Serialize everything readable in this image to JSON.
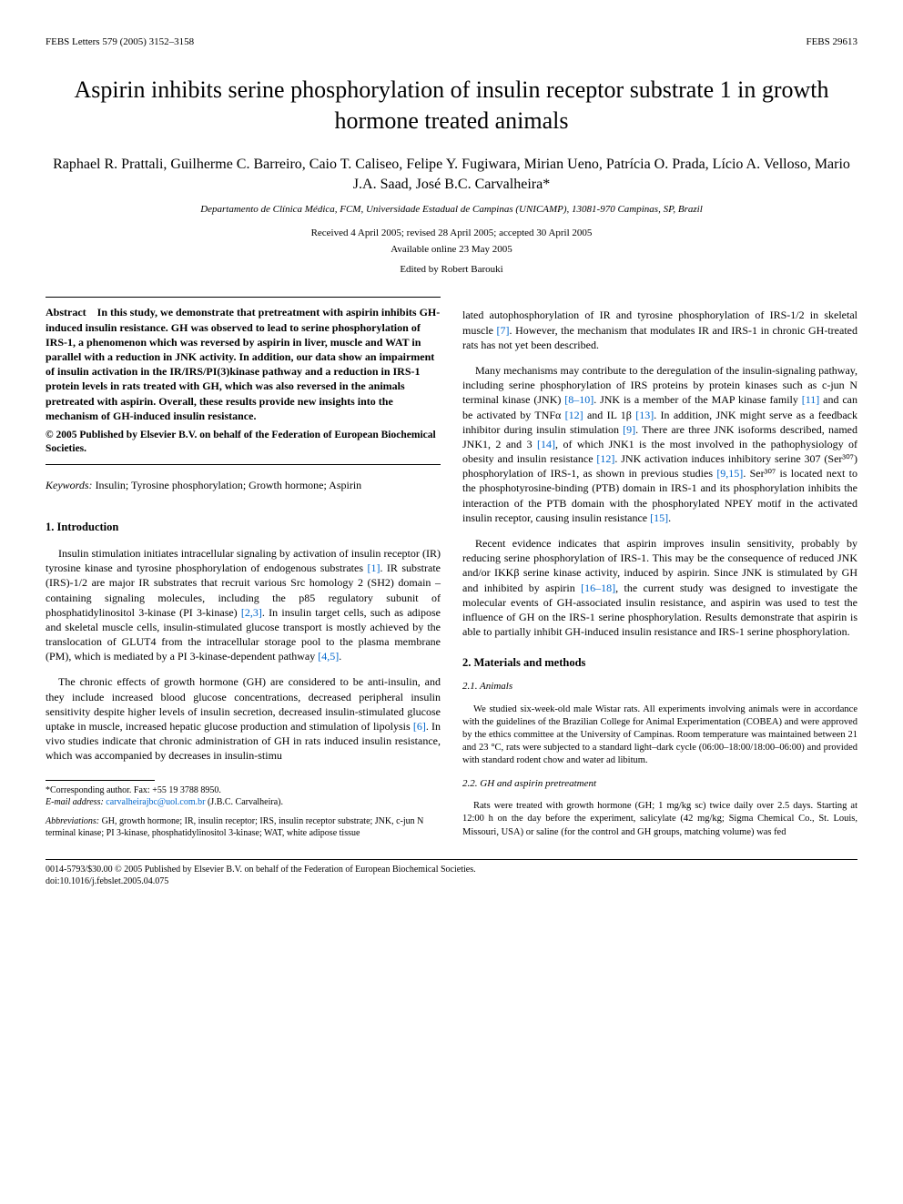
{
  "header": {
    "left": "FEBS Letters 579 (2005) 3152–3158",
    "right": "FEBS 29613"
  },
  "title": "Aspirin inhibits serine phosphorylation of insulin receptor substrate 1 in growth hormone treated animals",
  "authors": "Raphael R. Prattali, Guilherme C. Barreiro, Caio T. Caliseo, Felipe Y. Fugiwara, Mirian Ueno, Patrícia O. Prada, Lício A. Velloso, Mario J.A. Saad, José B.C. Carvalheira*",
  "affiliation": "Departamento de Clínica Médica, FCM, Universidade Estadual de Campinas (UNICAMP), 13081-970 Campinas, SP, Brazil",
  "dates": "Received 4 April 2005; revised 28 April 2005; accepted 30 April 2005",
  "available": "Available online 23 May 2005",
  "editor": "Edited by Robert Barouki",
  "abstract": {
    "label": "Abstract",
    "text": "In this study, we demonstrate that pretreatment with aspirin inhibits GH-induced insulin resistance. GH was observed to lead to serine phosphorylation of IRS-1, a phenomenon which was reversed by aspirin in liver, muscle and WAT in parallel with a reduction in JNK activity. In addition, our data show an impairment of insulin activation in the IR/IRS/PI(3)kinase pathway and a reduction in IRS-1 protein levels in rats treated with GH, which was also reversed in the animals pretreated with aspirin. Overall, these results provide new insights into the mechanism of GH-induced insulin resistance.",
    "copyright": "© 2005 Published by Elsevier B.V. on behalf of the Federation of European Biochemical Societies."
  },
  "keywords": {
    "label": "Keywords:",
    "text": "Insulin; Tyrosine phosphorylation; Growth hormone; Aspirin"
  },
  "sections": {
    "intro_heading": "1. Introduction",
    "intro_p1": "Insulin stimulation initiates intracellular signaling by activation of insulin receptor (IR) tyrosine kinase and tyrosine phosphorylation of endogenous substrates ",
    "intro_p1_ref1": "[1]",
    "intro_p1_cont": ". IR substrate (IRS)-1/2 are major IR substrates that recruit various Src homology 2 (SH2) domain – containing signaling molecules, including the p85 regulatory subunit of phosphatidylinositol 3-kinase (PI 3-kinase) ",
    "intro_p1_ref2": "[2,3]",
    "intro_p1_cont2": ". In insulin target cells, such as adipose and skeletal muscle cells, insulin-stimulated glucose transport is mostly achieved by the translocation of GLUT4 from the intracellular storage pool to the plasma membrane (PM), which is mediated by a PI 3-kinase-dependent pathway ",
    "intro_p1_ref3": "[4,5]",
    "intro_p1_end": ".",
    "intro_p2": "The chronic effects of growth hormone (GH) are considered to be anti-insulin, and they include increased blood glucose concentrations, decreased peripheral insulin sensitivity despite higher levels of insulin secretion, decreased insulin-stimulated glucose uptake in muscle, increased hepatic glucose production and stimulation of lipolysis ",
    "intro_p2_ref1": "[6]",
    "intro_p2_cont": ". In vivo studies indicate that chronic administration of GH in rats induced insulin resistance, which was accompanied by decreases in insulin-stimu",
    "col2_p1": "lated autophosphorylation of IR and tyrosine phosphorylation of IRS-1/2 in skeletal muscle ",
    "col2_p1_ref1": "[7]",
    "col2_p1_cont": ". However, the mechanism that modulates IR and IRS-1 in chronic GH-treated rats has not yet been described.",
    "col2_p2": "Many mechanisms may contribute to the deregulation of the insulin-signaling pathway, including serine phosphorylation of IRS proteins by protein kinases such as c-jun N terminal kinase (JNK) ",
    "col2_p2_ref1": "[8–10]",
    "col2_p2_cont": ". JNK is a member of the MAP kinase family ",
    "col2_p2_ref2": "[11]",
    "col2_p2_cont2": " and can be activated by TNFα ",
    "col2_p2_ref3": "[12]",
    "col2_p2_cont3": " and IL 1β ",
    "col2_p2_ref4": "[13]",
    "col2_p2_cont4": ". In addition, JNK might serve as a feedback inhibitor during insulin stimulation ",
    "col2_p2_ref5": "[9]",
    "col2_p2_cont5": ". There are three JNK isoforms described, named JNK1, 2 and 3 ",
    "col2_p2_ref6": "[14]",
    "col2_p2_cont6": ", of which JNK1 is the most involved in the pathophysiology of obesity and insulin resistance ",
    "col2_p2_ref7": "[12]",
    "col2_p2_cont7": ". JNK activation induces inhibitory serine 307 (Ser³⁰⁷) phosphorylation of IRS-1, as shown in previous studies ",
    "col2_p2_ref8": "[9,15]",
    "col2_p2_cont8": ". Ser³⁰⁷ is located next to the phosphotyrosine-binding (PTB) domain in IRS-1 and its phosphorylation inhibits the interaction of the PTB domain with the phosphorylated NPEY motif in the activated insulin receptor, causing insulin resistance ",
    "col2_p2_ref9": "[15]",
    "col2_p2_end": ".",
    "col2_p3": "Recent evidence indicates that aspirin improves insulin sensitivity, probably by reducing serine phosphorylation of IRS-1. This may be the consequence of reduced JNK and/or IKKβ serine kinase activity, induced by aspirin. Since JNK is stimulated by GH and inhibited by aspirin ",
    "col2_p3_ref1": "[16–18]",
    "col2_p3_cont": ", the current study was designed to investigate the molecular events of GH-associated insulin resistance, and aspirin was used to test the influence of GH on the IRS-1 serine phosphorylation. Results demonstrate that aspirin is able to partially inhibit GH-induced insulin resistance and IRS-1 serine phosphorylation.",
    "methods_heading": "2. Materials and methods",
    "m21_heading": "2.1. Animals",
    "m21_text": "We studied six-week-old male Wistar rats. All experiments involving animals were in accordance with the guidelines of the Brazilian College for Animal Experimentation (COBEA) and were approved by the ethics committee at the University of Campinas. Room temperature was maintained between 21 and 23 °C, rats were subjected to a standard light–dark cycle (06:00–18:00/18:00–06:00) and provided with standard rodent chow and water ad libitum.",
    "m22_heading": "2.2. GH and aspirin pretreatment",
    "m22_text": "Rats were treated with growth hormone (GH; 1 mg/kg sc) twice daily over 2.5 days. Starting at 12:00 h on the day before the experiment, salicylate (42 mg/kg; Sigma Chemical Co., St. Louis, Missouri, USA) or saline (for the control and GH groups, matching volume) was fed"
  },
  "footnotes": {
    "corresponding": "*Corresponding author. Fax: +55 19 3788 8950.",
    "email_label": "E-mail address:",
    "email": "carvalheirajbc@uol.com.br",
    "email_name": "(J.B.C. Carvalheira).",
    "abbrev_label": "Abbreviations:",
    "abbrev_text": "GH, growth hormone; IR, insulin receptor; IRS, insulin receptor substrate; JNK, c-jun N terminal kinase; PI 3-kinase, phosphatidylinositol 3-kinase; WAT, white adipose tissue"
  },
  "footer": {
    "line1": "0014-5793/$30.00 © 2005 Published by Elsevier B.V. on behalf of the Federation of European Biochemical Societies.",
    "line2": "doi:10.1016/j.febslet.2005.04.075"
  },
  "colors": {
    "text": "#000000",
    "link": "#0066cc",
    "background": "#ffffff"
  },
  "fonts": {
    "body_family": "Times New Roman",
    "title_size": 26,
    "author_size": 16,
    "body_size": 12,
    "small_size": 10.5,
    "footnote_size": 10
  }
}
